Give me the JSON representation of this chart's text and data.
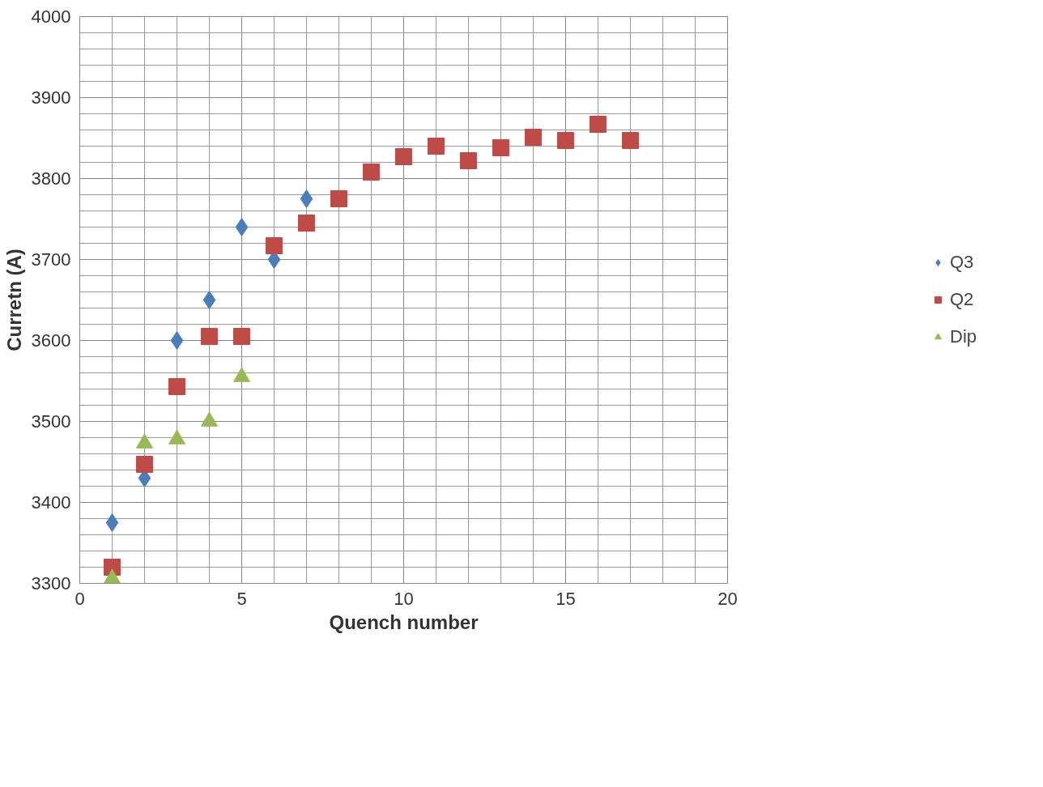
{
  "chart_data": {
    "type": "scatter",
    "xlabel": "Quench number",
    "ylabel": "Curretn (A)",
    "xlim": [
      0,
      20
    ],
    "xticks": [
      0,
      5,
      10,
      15,
      20
    ],
    "ylim": [
      3300,
      4000
    ],
    "yticks": [
      3300,
      3400,
      3500,
      3600,
      3700,
      3800,
      3900,
      4000
    ],
    "grid": true,
    "legend": "right",
    "series": [
      {
        "name": "Q3",
        "color": "#4a7ebb",
        "marker": "diamond",
        "x": [
          1,
          2,
          3,
          4,
          5,
          6,
          7
        ],
        "values": [
          3375,
          3430,
          3600,
          3650,
          3740,
          3700,
          3775
        ]
      },
      {
        "name": "Q2",
        "color": "#be4b48",
        "marker": "square",
        "x": [
          1,
          2,
          3,
          4,
          5,
          6,
          7,
          8,
          9,
          10,
          11,
          12,
          13,
          14,
          15,
          16,
          17
        ],
        "values": [
          3320,
          3447,
          3543,
          3605,
          3605,
          3717,
          3745,
          3775,
          3808,
          3827,
          3840,
          3822,
          3838,
          3851,
          3847,
          3867,
          3847
        ]
      },
      {
        "name": "Dip",
        "color": "#98b954",
        "marker": "triangle",
        "x": [
          1,
          2,
          3,
          4,
          5
        ],
        "values": [
          3306,
          3473,
          3478,
          3500,
          3555
        ]
      }
    ]
  }
}
